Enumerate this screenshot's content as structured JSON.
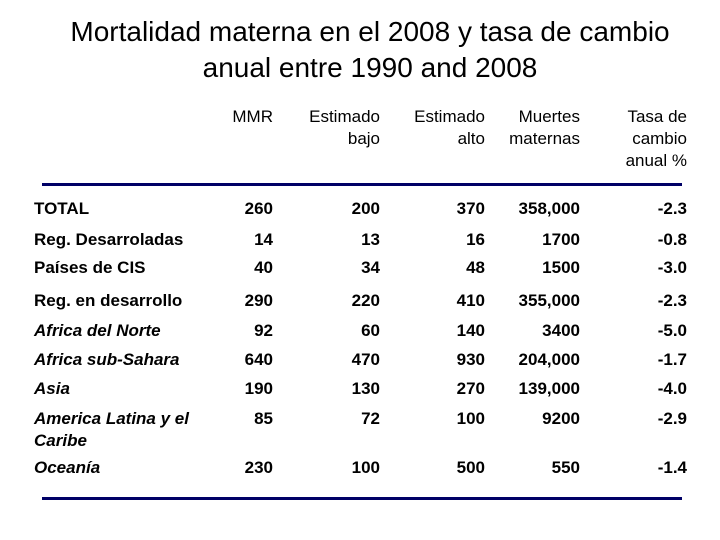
{
  "title": {
    "line1": "Mortalidad materna en el 2008 y tasa de cambio",
    "line2": "anual entre 1990 and 2008"
  },
  "columns": [
    {
      "lines": [
        "MMR"
      ]
    },
    {
      "lines": [
        "Estimado",
        "bajo"
      ]
    },
    {
      "lines": [
        "Estimado",
        "alto"
      ]
    },
    {
      "lines": [
        "Muertes",
        "maternas"
      ]
    },
    {
      "lines": [
        "Tasa de",
        "cambio",
        "anual %"
      ]
    }
  ],
  "rows": [
    {
      "label": "TOTAL",
      "italic": false,
      "values": [
        "260",
        "200",
        "370",
        "358,000",
        "-2.3"
      ]
    },
    {
      "label": "Reg. Desarroladas",
      "italic": false,
      "values": [
        "14",
        "13",
        "16",
        "1700",
        "-0.8"
      ]
    },
    {
      "label": "Países de CIS",
      "italic": false,
      "values": [
        "40",
        "34",
        "48",
        "1500",
        "-3.0"
      ]
    },
    {
      "label": "Reg. en desarrollo",
      "italic": false,
      "values": [
        "290",
        "220",
        "410",
        "355,000",
        "-2.3"
      ]
    },
    {
      "label": "Africa del Norte",
      "italic": true,
      "values": [
        "92",
        "60",
        "140",
        "3400",
        "-5.0"
      ]
    },
    {
      "label": "Africa sub-Sahara",
      "italic": true,
      "values": [
        "640",
        "470",
        "930",
        "204,000",
        "-1.7"
      ]
    },
    {
      "label": "Asia",
      "italic": true,
      "values": [
        "190",
        "130",
        "270",
        "139,000",
        "-4.0"
      ]
    },
    {
      "label": "America  Latina y el Caribe",
      "italic": true,
      "values": [
        "85",
        "72",
        "100",
        "9200",
        "-2.9"
      ]
    },
    {
      "label": "Oceanía",
      "italic": true,
      "values": [
        "230",
        "100",
        "500",
        "550",
        "-1.4"
      ]
    }
  ],
  "colors": {
    "rule": "#000066"
  }
}
